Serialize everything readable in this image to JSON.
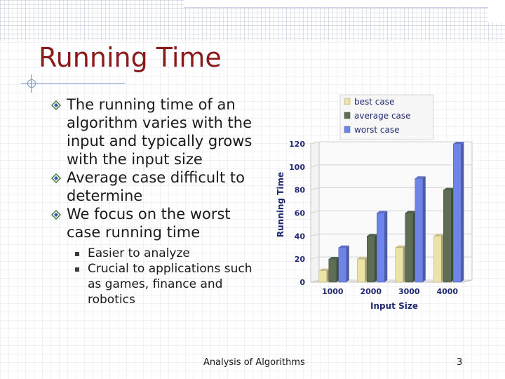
{
  "slide": {
    "title": "Running Time",
    "bullets": [
      "The running time of an algorithm varies with the input and typically grows with the input size",
      "Average case difficult to determine",
      "We focus on the worst case running time"
    ],
    "sub_bullets": [
      "Easier to analyze",
      "Crucial to applications such as games, finance and robotics"
    ],
    "footer": "Analysis of Algorithms",
    "page_number": "3"
  },
  "chart_data": {
    "type": "bar",
    "categories": [
      "1000",
      "2000",
      "3000",
      "4000"
    ],
    "series": [
      {
        "name": "best case",
        "values": [
          10,
          20,
          30,
          40
        ],
        "color": "#ece3a6"
      },
      {
        "name": "average case",
        "values": [
          20,
          40,
          60,
          80
        ],
        "color": "#5d6e55"
      },
      {
        "name": "worst case",
        "values": [
          30,
          60,
          90,
          120
        ],
        "color": "#6f84e8"
      }
    ],
    "title": "",
    "xlabel": "Input Size",
    "ylabel": "Running Time",
    "ylim": [
      0,
      120
    ],
    "yticks": [
      "0",
      "20",
      "40",
      "60",
      "80",
      "100",
      "120"
    ],
    "legend_position": "top-right",
    "grid": true
  }
}
